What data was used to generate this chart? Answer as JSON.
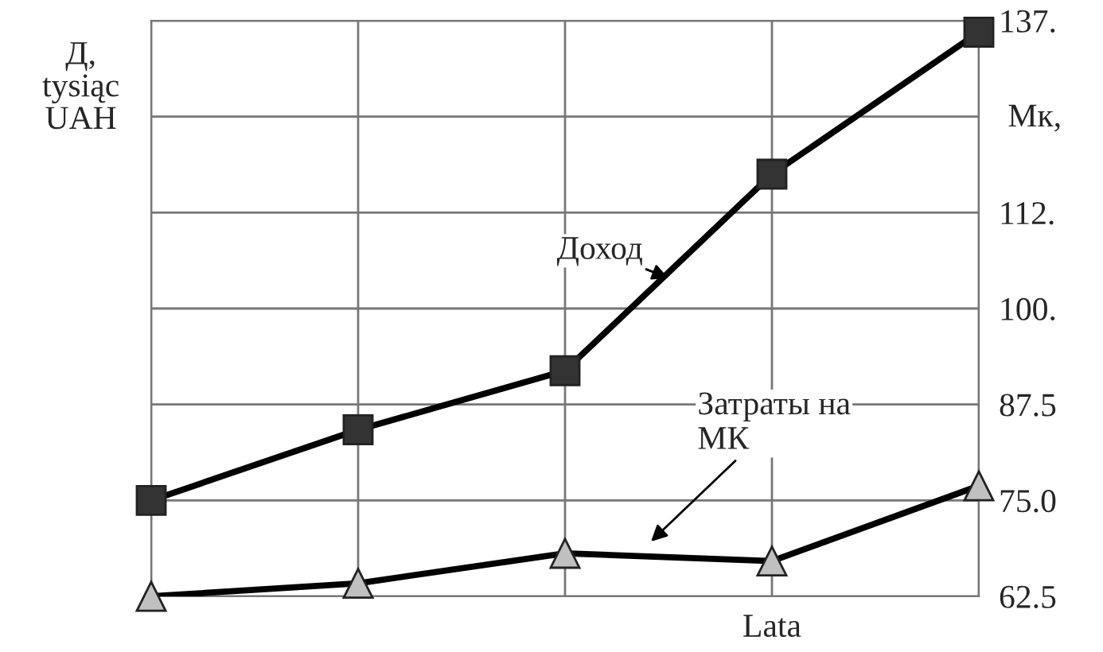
{
  "chart_data": {
    "type": "line",
    "ylabel": "Д,\ntysiąc\nUAH",
    "xlabel": "Lata",
    "categories": [
      null,
      null,
      null,
      null,
      null
    ],
    "series": [
      {
        "name": "Доход",
        "color": "#333333",
        "marker": "square",
        "values": [
          75.0,
          84.2,
          91.9,
          117.5,
          136
        ]
      },
      {
        "name": "Затраты на\nМК",
        "color": "#c0c0c0",
        "marker": "triangle",
        "values": [
          62.5,
          64.2,
          68.1,
          67.1,
          76.9
        ]
      }
    ],
    "annotations": [
      "Мк,"
    ],
    "ylim": [
      62.5,
      137.5
    ],
    "yticks": [
      {
        "value": 62.5,
        "label": "62.5"
      },
      {
        "value": 75,
        "label": "75.0"
      },
      {
        "value": 87.5,
        "label": "87.5"
      },
      {
        "value": 100,
        "label": "100."
      },
      {
        "value": 112.5,
        "label": "112."
      },
      {
        "value": 125,
        "label": null
      },
      {
        "value": 137.5,
        "label": "137."
      }
    ],
    "grid": true,
    "tick_labels": "y",
    "line_style": "solid"
  }
}
